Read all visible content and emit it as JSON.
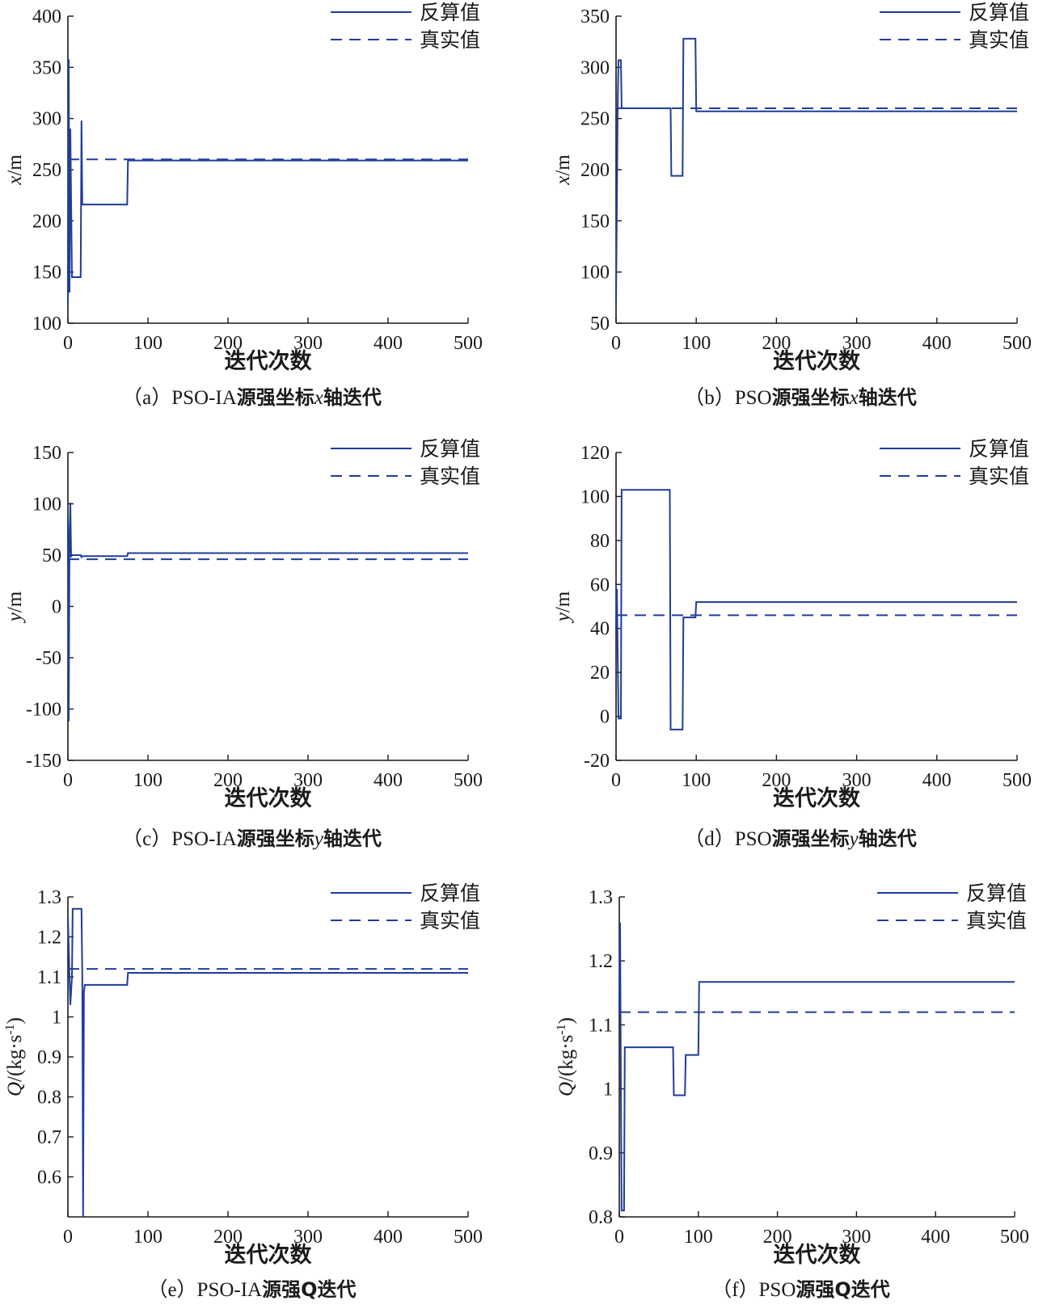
{
  "colors": {
    "series": "#1f3d99",
    "axis": "#1a1a1a",
    "background": "#ffffff"
  },
  "chart_data": [
    {
      "id": "a",
      "type": "line",
      "caption": {
        "prefix": "（a）PSO-IA",
        "middle": "源强坐标",
        "var": "x",
        "suffix": "轴迭代"
      },
      "xlabel": "迭代次数",
      "ylabel": {
        "var": "x",
        "unit": "/m"
      },
      "xlim": [
        0,
        500
      ],
      "ylim": [
        100,
        400
      ],
      "xticks": [
        0,
        100,
        200,
        300,
        400,
        500
      ],
      "yticks": [
        100,
        150,
        200,
        250,
        300,
        350,
        400
      ],
      "legend": {
        "position": "top-right",
        "entries": [
          "反算值",
          "真实值"
        ]
      },
      "series": [
        {
          "name": "反算值",
          "style": "solid",
          "x": [
            0,
            1,
            2,
            3,
            5,
            6,
            7,
            16,
            17,
            18,
            19,
            74,
            75,
            500
          ],
          "y": [
            120,
            358,
            130,
            290,
            145,
            145,
            145,
            145,
            298,
            216,
            216,
            216,
            259,
            259
          ]
        },
        {
          "name": "真实值",
          "style": "dashed",
          "x": [
            0,
            500
          ],
          "y": [
            260,
            260
          ]
        }
      ]
    },
    {
      "id": "b",
      "type": "line",
      "caption": {
        "prefix": "（b）PSO",
        "middle": "源强坐标",
        "var": "x",
        "suffix": "轴迭代"
      },
      "xlabel": "迭代次数",
      "ylabel": {
        "var": "x",
        "unit": "/m"
      },
      "xlim": [
        0,
        500
      ],
      "ylim": [
        50,
        350
      ],
      "xticks": [
        0,
        100,
        200,
        300,
        400,
        500
      ],
      "yticks": [
        50,
        100,
        150,
        200,
        250,
        300,
        350
      ],
      "legend": {
        "position": "top-right",
        "entries": [
          "反算值",
          "真实值"
        ]
      },
      "series": [
        {
          "name": "反算值",
          "style": "solid",
          "x": [
            0,
            2,
            3,
            6,
            7,
            68,
            69,
            83,
            84,
            99,
            100,
            500
          ],
          "y": [
            70,
            260,
            307,
            307,
            260,
            260,
            194,
            194,
            328,
            328,
            257,
            257
          ]
        },
        {
          "name": "真实值",
          "style": "dashed",
          "x": [
            0,
            500
          ],
          "y": [
            260,
            260
          ]
        }
      ]
    },
    {
      "id": "c",
      "type": "line",
      "caption": {
        "prefix": "（c）PSO-IA",
        "middle": "源强坐标",
        "var": "y",
        "suffix": "轴迭代"
      },
      "xlabel": "迭代次数",
      "ylabel": {
        "var": "y",
        "unit": "/m"
      },
      "xlim": [
        0,
        500
      ],
      "ylim": [
        -150,
        150
      ],
      "xticks": [
        0,
        100,
        200,
        300,
        400,
        500
      ],
      "yticks": [
        -150,
        -100,
        -50,
        0,
        50,
        100,
        150
      ],
      "legend": {
        "position": "top-right",
        "entries": [
          "反算值",
          "真实值"
        ]
      },
      "series": [
        {
          "name": "反算值",
          "style": "solid",
          "x": [
            0,
            1,
            2,
            3,
            4,
            5,
            16,
            17,
            18,
            74,
            75,
            500
          ],
          "y": [
            85,
            -112,
            70,
            101,
            48,
            50,
            50,
            48,
            49,
            49,
            52,
            52
          ]
        },
        {
          "name": "真实值",
          "style": "dashed",
          "x": [
            0,
            500
          ],
          "y": [
            46,
            46
          ]
        }
      ]
    },
    {
      "id": "d",
      "type": "line",
      "caption": {
        "prefix": "（d）PSO",
        "middle": "源强坐标",
        "var": "y",
        "suffix": "轴迭代"
      },
      "xlabel": "迭代次数",
      "ylabel": {
        "var": "y",
        "unit": "/m"
      },
      "xlim": [
        0,
        500
      ],
      "ylim": [
        -20,
        120
      ],
      "xticks": [
        0,
        100,
        200,
        300,
        400,
        500
      ],
      "yticks": [
        -20,
        0,
        20,
        40,
        60,
        80,
        100,
        120
      ],
      "legend": {
        "position": "top-right",
        "entries": [
          "反算值",
          "真实值"
        ]
      },
      "series": [
        {
          "name": "反算值",
          "style": "solid",
          "x": [
            0,
            1,
            2,
            3,
            4,
            6,
            7,
            67,
            68,
            83,
            84,
            99,
            100,
            500
          ],
          "y": [
            40,
            58,
            30,
            -1,
            -1,
            -1,
            103,
            103,
            -6,
            -6,
            45,
            45,
            52,
            52
          ]
        },
        {
          "name": "真实值",
          "style": "dashed",
          "x": [
            0,
            500
          ],
          "y": [
            46,
            46
          ]
        }
      ]
    },
    {
      "id": "e",
      "type": "line",
      "caption": {
        "prefix": "（e）PSO-IA",
        "middle": "源强Q迭代",
        "var": "",
        "suffix": ""
      },
      "xlabel": "迭代次数",
      "ylabel": {
        "var": "Q",
        "unit": "/(kg·s",
        "sup": "-1",
        "close": ")"
      },
      "xlim": [
        0,
        500
      ],
      "ylim": [
        0.5,
        1.3
      ],
      "xticks": [
        0,
        100,
        200,
        300,
        400,
        500
      ],
      "yticks": [
        0.6,
        0.7,
        0.8,
        0.9,
        1,
        1.1,
        1.2,
        1.3
      ],
      "legend": {
        "position": "top-right",
        "entries": [
          "反算值",
          "真实值"
        ]
      },
      "series": [
        {
          "name": "反算值",
          "style": "solid",
          "x": [
            0,
            2,
            3,
            5,
            6,
            17,
            18,
            19,
            20,
            21,
            74,
            75,
            500
          ],
          "y": [
            1.25,
            1.1,
            1.03,
            1.1,
            1.27,
            1.27,
            1.1,
            0.5,
            1.06,
            1.08,
            1.08,
            1.11,
            1.11
          ]
        },
        {
          "name": "真实值",
          "style": "dashed",
          "x": [
            0,
            500
          ],
          "y": [
            1.12,
            1.12
          ]
        }
      ]
    },
    {
      "id": "f",
      "type": "line",
      "caption": {
        "prefix": "（f）PSO",
        "middle": "源强Q迭代",
        "var": "",
        "suffix": ""
      },
      "xlabel": "迭代次数",
      "ylabel": {
        "var": "Q",
        "unit": "/(kg·s",
        "sup": "-1",
        "close": ")"
      },
      "xlim": [
        0,
        500
      ],
      "ylim": [
        0.8,
        1.3
      ],
      "xticks": [
        0,
        100,
        200,
        300,
        400,
        500
      ],
      "yticks": [
        0.8,
        0.9,
        1,
        1.1,
        1.2,
        1.3
      ],
      "legend": {
        "position": "top-right",
        "entries": [
          "反算值",
          "真实值"
        ]
      },
      "series": [
        {
          "name": "反算值",
          "style": "solid",
          "x": [
            0,
            1,
            2,
            3,
            4,
            6,
            7,
            68,
            69,
            83,
            84,
            100,
            101,
            500
          ],
          "y": [
            1.12,
            1.26,
            1.0,
            0.81,
            0.81,
            0.81,
            1.065,
            1.065,
            0.99,
            0.99,
            1.053,
            1.053,
            1.167,
            1.167
          ]
        },
        {
          "name": "真实值",
          "style": "dashed",
          "x": [
            0,
            500
          ],
          "y": [
            1.12,
            1.12
          ]
        }
      ]
    }
  ]
}
